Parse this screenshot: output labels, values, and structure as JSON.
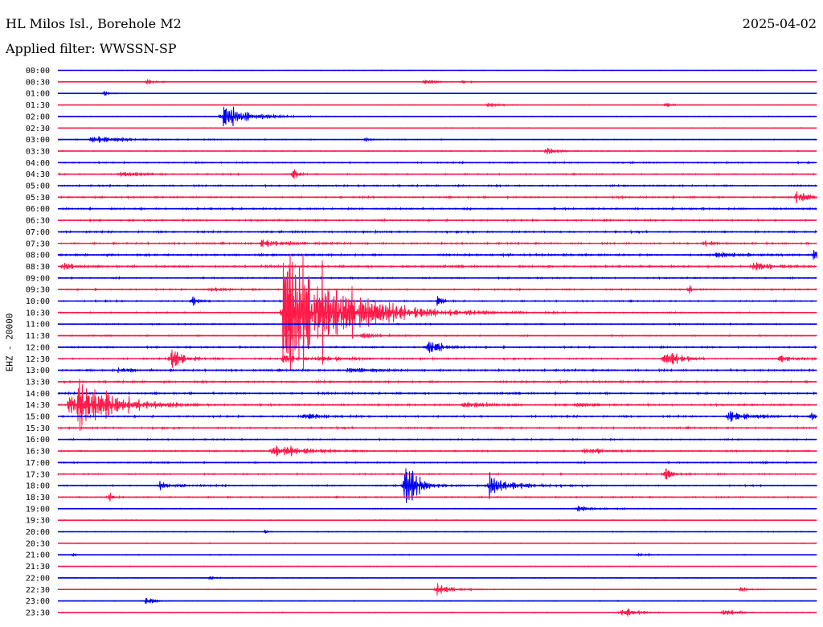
{
  "header": {
    "title": "HL Milos Isl., Borehole M2",
    "date": "2025-04-02",
    "filter": "Applied filter: WWSSN-SP"
  },
  "colors": {
    "trace_a": "#0000ee",
    "trace_b": "#ff1a4a"
  },
  "chart_data": {
    "type": "line",
    "subtype": "helicorder",
    "ylabel": "EHZ - 20000",
    "row_labels": [
      "00:00",
      "00:30",
      "01:00",
      "01:30",
      "02:00",
      "02:30",
      "03:00",
      "03:30",
      "04:00",
      "04:30",
      "05:00",
      "05:30",
      "06:00",
      "06:30",
      "07:00",
      "07:30",
      "08:00",
      "08:30",
      "09:00",
      "09:30",
      "10:00",
      "10:30",
      "11:00",
      "11:30",
      "12:00",
      "12:30",
      "13:00",
      "13:30",
      "14:00",
      "14:30",
      "15:00",
      "15:30",
      "16:00",
      "16:30",
      "17:00",
      "17:30",
      "18:00",
      "18:30",
      "19:00",
      "19:30",
      "20:00",
      "20:30",
      "21:00",
      "21:30",
      "22:00",
      "22:30",
      "23:00",
      "23:30"
    ],
    "minutes_per_row": 30,
    "color_cycle": [
      "trace_a",
      "trace_b"
    ],
    "noise_level": [
      0.3,
      0.3,
      0.35,
      0.35,
      0.5,
      0.5,
      0.6,
      0.6,
      0.9,
      0.9,
      1.1,
      1.1,
      1.2,
      1.2,
      1.2,
      1.2,
      1.4,
      1.4,
      1.0,
      1.0,
      0.9,
      0.9,
      0.8,
      0.8,
      1.1,
      1.1,
      1.3,
      1.3,
      1.2,
      1.2,
      1.2,
      1.2,
      0.9,
      0.9,
      0.9,
      0.9,
      0.9,
      0.9,
      0.6,
      0.6,
      0.5,
      0.5,
      0.5,
      0.5,
      0.5,
      0.5,
      0.5,
      0.5
    ],
    "events": [
      {
        "row": "00:30",
        "minute": 3.5,
        "amplitude": 5,
        "duration": 1.0
      },
      {
        "row": "00:30",
        "minute": 14.5,
        "amplitude": 6,
        "duration": 0.8
      },
      {
        "row": "00:30",
        "minute": 16.0,
        "amplitude": 4,
        "duration": 0.5
      },
      {
        "row": "01:00",
        "minute": 1.8,
        "amplitude": 4,
        "duration": 0.6
      },
      {
        "row": "01:30",
        "minute": 17.0,
        "amplitude": 4,
        "duration": 1.0
      },
      {
        "row": "01:30",
        "minute": 24.0,
        "amplitude": 4,
        "duration": 0.7
      },
      {
        "row": "02:00",
        "minute": 6.5,
        "amplitude": 30,
        "duration": 1.8
      },
      {
        "row": "03:00",
        "minute": 1.3,
        "amplitude": 7,
        "duration": 2.5
      },
      {
        "row": "03:00",
        "minute": 12.2,
        "amplitude": 4,
        "duration": 0.3
      },
      {
        "row": "03:30",
        "minute": 19.3,
        "amplitude": 7,
        "duration": 1.2
      },
      {
        "row": "04:30",
        "minute": 2.5,
        "amplitude": 6,
        "duration": 1.6
      },
      {
        "row": "04:30",
        "minute": 9.3,
        "amplitude": 12,
        "duration": 0.4
      },
      {
        "row": "05:30",
        "minute": 29.2,
        "amplitude": 10,
        "duration": 1.0
      },
      {
        "row": "07:30",
        "minute": 8.0,
        "amplitude": 7,
        "duration": 2.5
      },
      {
        "row": "07:30",
        "minute": 25.6,
        "amplitude": 8,
        "duration": 0.5
      },
      {
        "row": "08:00",
        "minute": 26.0,
        "amplitude": 7,
        "duration": 1.5
      },
      {
        "row": "08:00",
        "minute": 29.9,
        "amplitude": 16,
        "duration": 0.3
      },
      {
        "row": "08:30",
        "minute": 0.2,
        "amplitude": 9,
        "duration": 0.8
      },
      {
        "row": "08:30",
        "minute": 27.5,
        "amplitude": 9,
        "duration": 1.5
      },
      {
        "row": "09:30",
        "minute": 6.0,
        "amplitude": 6,
        "duration": 1.0
      },
      {
        "row": "09:30",
        "minute": 25.0,
        "amplitude": 9,
        "duration": 0.2
      },
      {
        "row": "10:00",
        "minute": 5.3,
        "amplitude": 10,
        "duration": 0.5
      },
      {
        "row": "10:00",
        "minute": 15.0,
        "amplitude": 10,
        "duration": 0.5
      },
      {
        "row": "10:30",
        "minute": 8.9,
        "amplitude": 170,
        "duration": 4.0
      },
      {
        "row": "11:30",
        "minute": 12.0,
        "amplitude": 6,
        "duration": 1.5
      },
      {
        "row": "12:00",
        "minute": 14.6,
        "amplitude": 20,
        "duration": 1.0
      },
      {
        "row": "12:30",
        "minute": 4.5,
        "amplitude": 24,
        "duration": 1.0
      },
      {
        "row": "12:30",
        "minute": 8.9,
        "amplitude": 8,
        "duration": 3.0
      },
      {
        "row": "12:30",
        "minute": 24.0,
        "amplitude": 20,
        "duration": 1.0
      },
      {
        "row": "12:30",
        "minute": 28.5,
        "amplitude": 6,
        "duration": 1.5
      },
      {
        "row": "13:00",
        "minute": 2.4,
        "amplitude": 9,
        "duration": 0.8
      },
      {
        "row": "13:00",
        "minute": 11.5,
        "amplitude": 7,
        "duration": 1.5
      },
      {
        "row": "14:30",
        "minute": 0.5,
        "amplitude": 60,
        "duration": 3.0
      },
      {
        "row": "14:30",
        "minute": 16.0,
        "amplitude": 7,
        "duration": 1.5
      },
      {
        "row": "14:30",
        "minute": 20.5,
        "amplitude": 5,
        "duration": 1.0
      },
      {
        "row": "15:00",
        "minute": 9.7,
        "amplitude": 5,
        "duration": 1.5
      },
      {
        "row": "15:00",
        "minute": 26.5,
        "amplitude": 8,
        "duration": 1.8
      },
      {
        "row": "15:00",
        "minute": 29.8,
        "amplitude": 6,
        "duration": 0.5
      },
      {
        "row": "16:30",
        "minute": 8.5,
        "amplitude": 11,
        "duration": 3.0
      },
      {
        "row": "16:30",
        "minute": 20.8,
        "amplitude": 5,
        "duration": 2.0
      },
      {
        "row": "17:00",
        "minute": 27.8,
        "amplitude": 6,
        "duration": 0.3
      },
      {
        "row": "17:30",
        "minute": 24.0,
        "amplitude": 11,
        "duration": 0.8
      },
      {
        "row": "18:00",
        "minute": 4.0,
        "amplitude": 7,
        "duration": 1.5
      },
      {
        "row": "18:00",
        "minute": 13.7,
        "amplitude": 38,
        "duration": 1.2
      },
      {
        "row": "18:00",
        "minute": 17.0,
        "amplitude": 18,
        "duration": 2.0
      },
      {
        "row": "18:30",
        "minute": 2.0,
        "amplitude": 7,
        "duration": 0.5
      },
      {
        "row": "19:00",
        "minute": 20.5,
        "amplitude": 4,
        "duration": 1.5
      },
      {
        "row": "20:00",
        "minute": 8.2,
        "amplitude": 4,
        "duration": 0.3
      },
      {
        "row": "21:00",
        "minute": 0.6,
        "amplitude": 3,
        "duration": 0.2
      },
      {
        "row": "21:00",
        "minute": 23.0,
        "amplitude": 4,
        "duration": 0.5
      },
      {
        "row": "22:00",
        "minute": 6.0,
        "amplitude": 3,
        "duration": 0.5
      },
      {
        "row": "22:30",
        "minute": 15.0,
        "amplitude": 12,
        "duration": 1.2
      },
      {
        "row": "22:30",
        "minute": 27.0,
        "amplitude": 6,
        "duration": 0.6
      },
      {
        "row": "23:00",
        "minute": 3.5,
        "amplitude": 9,
        "duration": 0.6
      },
      {
        "row": "23:30",
        "minute": 22.3,
        "amplitude": 8,
        "duration": 1.2
      },
      {
        "row": "23:30",
        "minute": 26.3,
        "amplitude": 6,
        "duration": 1.2
      }
    ]
  }
}
